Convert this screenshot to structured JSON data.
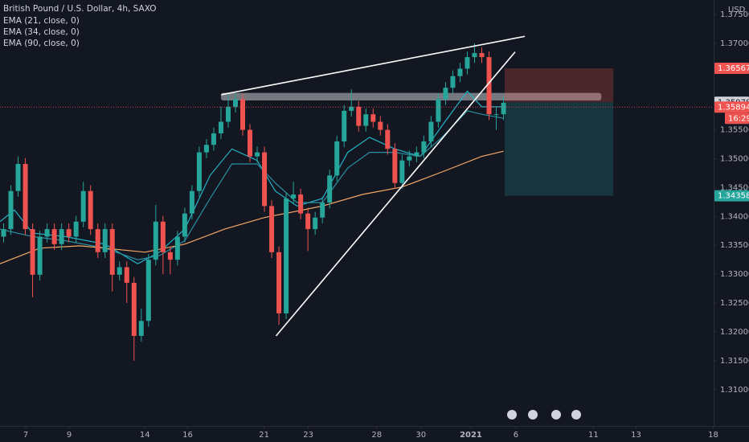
{
  "chart_data": {
    "type": "candlestick",
    "title": "British Pound / U.S. Dollar, 4h, SAXO",
    "currency": "USD",
    "up_color": "#26a69a",
    "down_color": "#ef5350",
    "x": [
      1,
      3,
      5,
      7,
      9,
      11,
      13,
      15,
      17,
      19,
      21,
      23,
      25,
      27,
      29,
      31,
      33,
      35,
      37,
      39,
      41,
      43,
      45,
      47,
      49,
      51,
      53,
      55,
      57,
      59,
      61,
      63,
      65,
      67,
      69,
      71,
      73,
      75,
      77,
      79,
      81,
      83,
      85,
      87,
      89,
      91,
      93,
      95,
      97,
      99,
      101,
      103,
      105,
      107,
      109,
      111,
      113,
      115,
      117,
      119,
      121,
      123,
      125,
      127,
      129,
      131,
      133,
      135,
      137,
      139
    ],
    "open": [
      1.3365,
      1.3378,
      1.3444,
      1.3491,
      1.3378,
      1.3299,
      1.3365,
      1.3378,
      1.3352,
      1.3378,
      1.3365,
      1.3391,
      1.3444,
      1.3378,
      1.3338,
      1.3378,
      1.3299,
      1.3312,
      1.3285,
      1.3193,
      1.3219,
      1.3325,
      1.3391,
      1.3338,
      1.3325,
      1.3365,
      1.3405,
      1.3444,
      1.3511,
      1.3524,
      1.3544,
      1.3564,
      1.359,
      1.3603,
      1.355,
      1.3504,
      1.3511,
      1.3418,
      1.3338,
      1.3232,
      1.3431,
      1.3438,
      1.3405,
      1.3378,
      1.3398,
      1.3424,
      1.3471,
      1.353,
      1.3583,
      1.359,
      1.3557,
      1.3577,
      1.3564,
      1.355,
      1.3517,
      1.3458,
      1.3497,
      1.3504,
      1.3511,
      1.353,
      1.3564,
      1.3603,
      1.3623,
      1.3643,
      1.3656,
      1.3676,
      1.3683,
      1.3676,
      1.3577,
      1.3577
    ],
    "high": [
      1.3388,
      1.3454,
      1.3504,
      1.3501,
      1.3388,
      1.3375,
      1.3388,
      1.3388,
      1.3388,
      1.3388,
      1.3401,
      1.346,
      1.3454,
      1.3388,
      1.3388,
      1.3388,
      1.3322,
      1.3322,
      1.3295,
      1.324,
      1.3335,
      1.342,
      1.3401,
      1.3348,
      1.3375,
      1.3415,
      1.3454,
      1.3521,
      1.3534,
      1.3554,
      1.359,
      1.361,
      1.3613,
      1.3613,
      1.356,
      1.3521,
      1.3521,
      1.3428,
      1.3348,
      1.3441,
      1.346,
      1.3448,
      1.3415,
      1.3408,
      1.3434,
      1.3481,
      1.354,
      1.3593,
      1.362,
      1.36,
      1.3587,
      1.3587,
      1.3574,
      1.356,
      1.3527,
      1.3507,
      1.3514,
      1.3521,
      1.354,
      1.3574,
      1.3613,
      1.3633,
      1.3653,
      1.3666,
      1.3686,
      1.37,
      1.3693,
      1.3686,
      1.359,
      1.3607
    ],
    "low": [
      1.3355,
      1.3368,
      1.3434,
      1.3368,
      1.326,
      1.3289,
      1.3355,
      1.3342,
      1.3342,
      1.3355,
      1.3355,
      1.3381,
      1.3368,
      1.3328,
      1.3328,
      1.327,
      1.3289,
      1.325,
      1.315,
      1.3183,
      1.3209,
      1.3315,
      1.33,
      1.33,
      1.3315,
      1.3355,
      1.3395,
      1.3434,
      1.3501,
      1.3514,
      1.3534,
      1.3554,
      1.358,
      1.354,
      1.3494,
      1.3494,
      1.3408,
      1.3328,
      1.3212,
      1.3222,
      1.3421,
      1.3395,
      1.334,
      1.3368,
      1.3388,
      1.3414,
      1.3461,
      1.352,
      1.3573,
      1.3547,
      1.3547,
      1.3554,
      1.354,
      1.3507,
      1.3448,
      1.3448,
      1.3487,
      1.3494,
      1.3501,
      1.352,
      1.3554,
      1.3593,
      1.3613,
      1.3633,
      1.3646,
      1.3666,
      1.3666,
      1.3567,
      1.355,
      1.3567
    ],
    "close": [
      1.3378,
      1.3444,
      1.3491,
      1.3378,
      1.3299,
      1.3365,
      1.3378,
      1.3352,
      1.3378,
      1.3365,
      1.3391,
      1.3444,
      1.3378,
      1.3338,
      1.3378,
      1.3299,
      1.3312,
      1.3285,
      1.3193,
      1.3219,
      1.3325,
      1.3391,
      1.3338,
      1.3325,
      1.3365,
      1.3405,
      1.3444,
      1.3511,
      1.3524,
      1.3544,
      1.3564,
      1.359,
      1.3603,
      1.355,
      1.3504,
      1.3511,
      1.3418,
      1.3338,
      1.3232,
      1.3431,
      1.3438,
      1.3405,
      1.3378,
      1.3398,
      1.3424,
      1.3471,
      1.353,
      1.3583,
      1.359,
      1.3557,
      1.3577,
      1.3564,
      1.355,
      1.3517,
      1.3458,
      1.3497,
      1.3504,
      1.3511,
      1.353,
      1.3564,
      1.3603,
      1.3623,
      1.3643,
      1.3656,
      1.3676,
      1.3683,
      1.3676,
      1.3577,
      1.3577,
      1.3597
    ],
    "series": [
      {
        "name": "EMA (21, close, 0)",
        "color": "#22b3c8",
        "x": [
          0,
          4,
          9,
          18,
          29,
          38,
          44,
          51,
          58,
          64,
          71,
          76,
          82,
          89,
          96,
          102,
          109,
          116,
          122,
          129,
          133,
          139
        ],
        "values": [
          1.3391,
          1.3411,
          1.3371,
          1.3365,
          1.3352,
          1.3318,
          1.3338,
          1.3378,
          1.3471,
          1.3517,
          1.3497,
          1.3444,
          1.3418,
          1.3431,
          1.3511,
          1.3537,
          1.3517,
          1.3504,
          1.3557,
          1.3617,
          1.359,
          1.359
        ]
      },
      {
        "name": "EMA (34, close, 0)",
        "color": "#2a8fa0",
        "x": [
          0,
          9,
          18,
          29,
          38,
          44,
          51,
          58,
          64,
          71,
          76,
          82,
          89,
          96,
          102,
          109,
          116,
          122,
          129,
          133,
          139
        ],
        "values": [
          1.3378,
          1.3365,
          1.3358,
          1.3345,
          1.3325,
          1.3332,
          1.3358,
          1.3431,
          1.3491,
          1.3491,
          1.3458,
          1.3424,
          1.3424,
          1.3484,
          1.3511,
          1.3511,
          1.3504,
          1.3537,
          1.3583,
          1.3577,
          1.357
        ]
      },
      {
        "name": "EMA (90, close, 0)",
        "color": "#f5a865",
        "x": [
          0,
          11,
          22,
          29,
          40,
          51,
          62,
          73,
          89,
          100,
          111,
          122,
          133,
          139
        ],
        "values": [
          1.3318,
          1.3345,
          1.3349,
          1.3345,
          1.3338,
          1.3352,
          1.3378,
          1.3398,
          1.3418,
          1.3438,
          1.3451,
          1.3477,
          1.3504,
          1.3513
        ]
      }
    ],
    "trendlines": [
      {
        "x": [
          61.1,
          144.9
        ],
        "values": [
          1.3611,
          1.3712
        ]
      },
      {
        "x": [
          76.2,
          142.2
        ],
        "values": [
          1.3193,
          1.3685
        ]
      }
    ],
    "zone": {
      "x": [
        61,
        166
      ],
      "values": [
        1.3614,
        1.3601
      ]
    },
    "position": {
      "x": [
        139.3,
        169.3
      ],
      "stop": 1.36567,
      "entry": 1.35978,
      "target": 1.34358
    },
    "last_price": 1.35894,
    "countdown": "16:29",
    "xlim": [
      0,
      197
    ],
    "ylim": [
      1.3037,
      1.3775
    ],
    "xticks": [
      {
        "value": 7.1,
        "label": "7"
      },
      {
        "value": 19.1,
        "label": "9"
      },
      {
        "value": 40,
        "label": "14"
      },
      {
        "value": 51.8,
        "label": "16"
      },
      {
        "value": 72.9,
        "label": "21"
      },
      {
        "value": 85.1,
        "label": "23"
      },
      {
        "value": 104,
        "label": "28"
      },
      {
        "value": 116.2,
        "label": "30"
      },
      {
        "value": 130,
        "label": "2021"
      },
      {
        "value": 142.4,
        "label": "6"
      },
      {
        "value": 163.8,
        "label": "11"
      },
      {
        "value": 175.6,
        "label": "13"
      },
      {
        "value": 196.9,
        "label": "18"
      }
    ],
    "yticks": [
      {
        "value": 1.375,
        "label": "1.37500"
      },
      {
        "value": 1.37,
        "label": "1.37000"
      },
      {
        "value": 1.355,
        "label": "1.35500"
      },
      {
        "value": 1.35,
        "label": "1.35000"
      },
      {
        "value": 1.345,
        "label": "1.34500"
      },
      {
        "value": 1.34,
        "label": "1.34000"
      },
      {
        "value": 1.335,
        "label": "1.33500"
      },
      {
        "value": 1.33,
        "label": "1.33000"
      },
      {
        "value": 1.325,
        "label": "1.32500"
      },
      {
        "value": 1.32,
        "label": "1.32000"
      },
      {
        "value": 1.315,
        "label": "1.31500"
      },
      {
        "value": 1.31,
        "label": "1.31000"
      }
    ]
  }
}
